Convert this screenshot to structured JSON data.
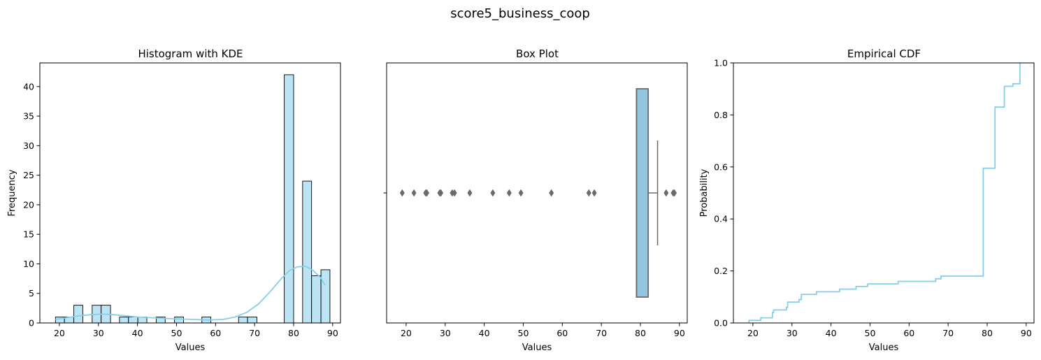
{
  "figure": {
    "suptitle": "score5_business_coop"
  },
  "colors": {
    "accent": "#87ceeb",
    "box_fill": "#92c5de",
    "hist_fill": "#bde4f4",
    "box_edge": "#6b6b6b",
    "edge": "#000000"
  },
  "chart_data": [
    {
      "type": "bar",
      "subtype": "histogram_with_kde",
      "title": "Histogram with KDE",
      "xlabel": "Values",
      "ylabel": "Frequency",
      "xlim": [
        15,
        92
      ],
      "ylim": [
        0,
        44
      ],
      "xticks": [
        20,
        30,
        40,
        50,
        60,
        70,
        80,
        90
      ],
      "yticks": [
        0,
        5,
        10,
        15,
        20,
        25,
        30,
        35,
        40
      ],
      "bin_edges": [
        19.0,
        21.3,
        23.7,
        26.0,
        28.4,
        30.7,
        33.1,
        35.4,
        37.7,
        40.1,
        42.4,
        44.8,
        47.1,
        49.5,
        51.8,
        54.2,
        56.5,
        58.8,
        61.2,
        63.5,
        65.9,
        68.2,
        70.6,
        72.9,
        75.3,
        77.6,
        80.0,
        82.3,
        84.6,
        87.0,
        89.3
      ],
      "counts": [
        1,
        1,
        3,
        0,
        3,
        3,
        0,
        1,
        1,
        1,
        0,
        1,
        0,
        1,
        0,
        0,
        1,
        0,
        0,
        0,
        1,
        1,
        0,
        0,
        0,
        42,
        0,
        24,
        8,
        9
      ],
      "kde": {
        "x": [
          19,
          22,
          25,
          28,
          31,
          34,
          37,
          40,
          43,
          46,
          50,
          54,
          58,
          62,
          65,
          68,
          71,
          74,
          77,
          79,
          81,
          83,
          85,
          87,
          88
        ],
        "y": [
          0.6,
          0.9,
          1.2,
          1.4,
          1.5,
          1.4,
          1.2,
          1.0,
          0.9,
          0.8,
          0.7,
          0.6,
          0.5,
          0.6,
          1.0,
          1.8,
          3.2,
          5.3,
          7.6,
          8.9,
          9.5,
          9.6,
          8.9,
          7.6,
          6.4
        ]
      },
      "grid": false,
      "legend": "none"
    },
    {
      "type": "box",
      "title": "Box Plot",
      "xlabel": "Values",
      "ylabel": "",
      "xlim": [
        15,
        92
      ],
      "xticks": [
        20,
        30,
        40,
        50,
        60,
        70,
        80,
        90
      ],
      "box": {
        "q1": 79,
        "median": 79,
        "q3": 82,
        "whisker_low": 79,
        "whisker_high": 84.4
      },
      "outliers": [
        19,
        22,
        25,
        25.3,
        28.6,
        28.9,
        31.8,
        32.4,
        36.3,
        42.2,
        46.4,
        49.4,
        57.2,
        66.8,
        68.2,
        86.6,
        88.4,
        88.7
      ],
      "grid": false,
      "legend": "none"
    },
    {
      "type": "line",
      "subtype": "ecdf_step",
      "title": "Empirical CDF",
      "xlabel": "Values",
      "ylabel": "Probability",
      "xlim": [
        15,
        92
      ],
      "ylim": [
        0,
        1
      ],
      "xticks": [
        20,
        30,
        40,
        50,
        60,
        70,
        80,
        90
      ],
      "yticks": [
        0.0,
        0.2,
        0.4,
        0.6,
        0.8,
        1.0
      ],
      "x": [
        19,
        22,
        25,
        25.3,
        28.6,
        28.9,
        31.8,
        32.4,
        36.3,
        42.2,
        46.4,
        49.4,
        57.2,
        66.8,
        68.2,
        79,
        82,
        84.4,
        86.6,
        88.4
      ],
      "y": [
        0.01,
        0.02,
        0.04,
        0.05,
        0.06,
        0.08,
        0.09,
        0.11,
        0.12,
        0.13,
        0.14,
        0.15,
        0.16,
        0.17,
        0.18,
        0.595,
        0.83,
        0.91,
        0.92,
        1.0
      ],
      "grid": false,
      "legend": "none"
    }
  ]
}
